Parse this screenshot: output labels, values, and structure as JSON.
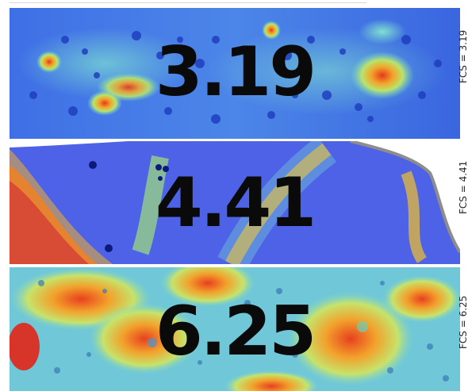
{
  "panels": [
    {
      "value": "3.19",
      "side_label": "FCS = 3.19"
    },
    {
      "value": "4.41",
      "side_label": "FCS = 4.41"
    },
    {
      "value": "6.25",
      "side_label": "FCS = 6.25"
    }
  ],
  "colors": {
    "low": "#3a55e8",
    "mid": "#6fd7d2",
    "high": "#e8401e",
    "number": "#0a0a0a"
  }
}
